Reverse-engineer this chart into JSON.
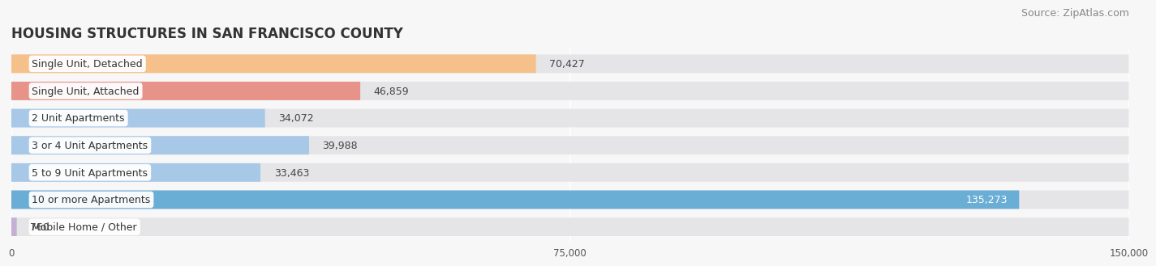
{
  "title": "HOUSING STRUCTURES IN SAN FRANCISCO COUNTY",
  "source": "Source: ZipAtlas.com",
  "categories": [
    "Single Unit, Detached",
    "Single Unit, Attached",
    "2 Unit Apartments",
    "3 or 4 Unit Apartments",
    "5 to 9 Unit Apartments",
    "10 or more Apartments",
    "Mobile Home / Other"
  ],
  "values": [
    70427,
    46859,
    34072,
    39988,
    33463,
    135273,
    760
  ],
  "bar_colors": [
    "#f5c08a",
    "#e8938a",
    "#a8c8e8",
    "#a8c8e8",
    "#a8c8e8",
    "#6aadd5",
    "#c5b0d5"
  ],
  "bar_bg_color": "#e5e5e8",
  "label_in_bar": [
    false,
    false,
    false,
    false,
    false,
    true,
    false
  ],
  "xlim": [
    0,
    150000
  ],
  "xticks": [
    0,
    75000,
    150000
  ],
  "xtick_labels": [
    "0",
    "75,000",
    "150,000"
  ],
  "background_color": "#f7f7f7",
  "title_fontsize": 12,
  "source_fontsize": 9,
  "bar_label_fontsize": 9,
  "category_fontsize": 9
}
